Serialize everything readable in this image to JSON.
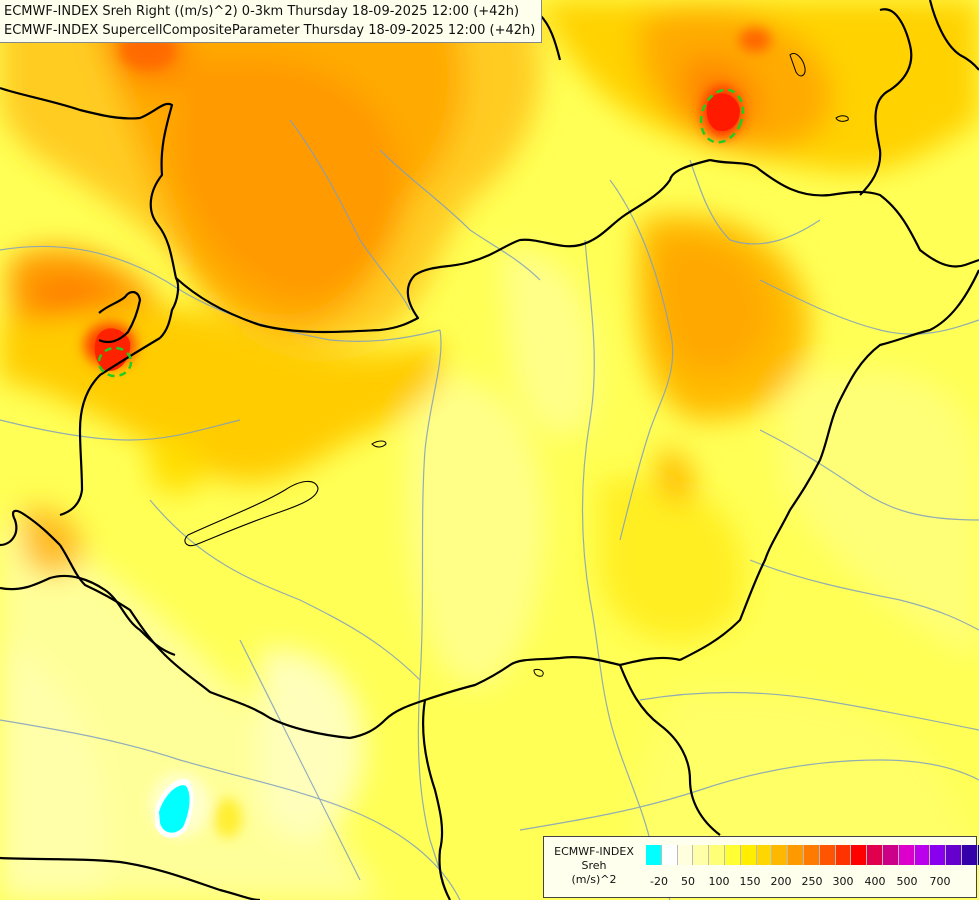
{
  "header": {
    "line1": "ECMWF-INDEX Sreh Right ((m/s)^2) 0-3km Thursday 18-09-2025 12:00 (+42h)",
    "line2": "ECMWF-INDEX SupercellCompositeParameter Thursday 18-09-2025 12:00 (+42h)"
  },
  "legend": {
    "title": "ECMWF-INDEX",
    "subtitle": "Sreh",
    "unit": "(m/s)^2",
    "colors": [
      "#00ffff",
      "#ffffff",
      "#ffffdd",
      "#ffffaa",
      "#ffff77",
      "#ffff33",
      "#ffee00",
      "#ffd700",
      "#ffb700",
      "#ff9900",
      "#ff7a00",
      "#ff5500",
      "#ff3300",
      "#ff0000",
      "#e0004e",
      "#cc0088",
      "#dd00cc",
      "#bb00ee",
      "#8800ee",
      "#6600cc",
      "#3300aa",
      "#000088"
    ],
    "tick_labels": [
      "-20",
      "50",
      "100",
      "150",
      "200",
      "250",
      "300",
      "400",
      "500",
      "700"
    ]
  }
}
